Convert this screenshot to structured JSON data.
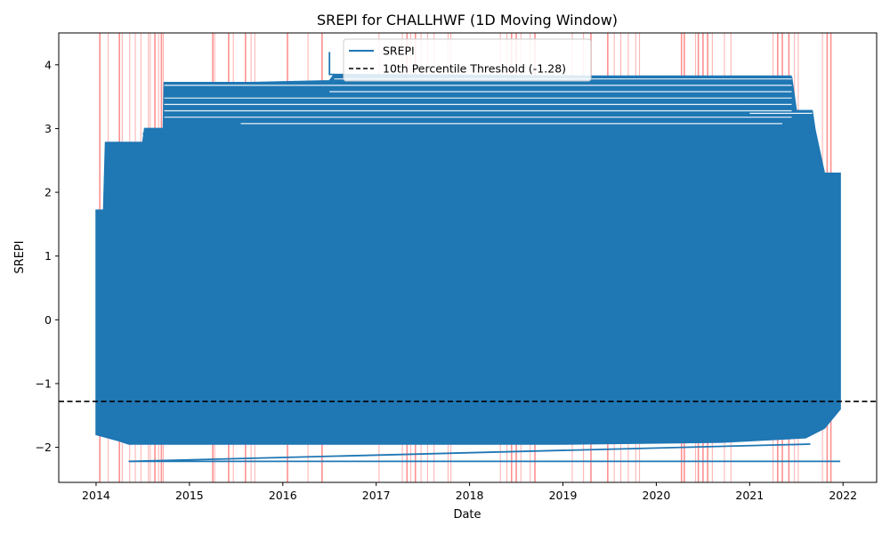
{
  "chart_data": {
    "type": "line",
    "title": "SREPI for CHALLHWF (1D Moving Window)",
    "xlabel": "Date",
    "ylabel": "SREPI",
    "x_range": [
      2013.6,
      2022.36
    ],
    "ylim": [
      -2.55,
      4.5
    ],
    "x_ticks": [
      {
        "value": 2014,
        "label": "2014"
      },
      {
        "value": 2015,
        "label": "2015"
      },
      {
        "value": 2016,
        "label": "2016"
      },
      {
        "value": 2017,
        "label": "2017"
      },
      {
        "value": 2018,
        "label": "2018"
      },
      {
        "value": 2019,
        "label": "2019"
      },
      {
        "value": 2020,
        "label": "2020"
      },
      {
        "value": 2021,
        "label": "2021"
      },
      {
        "value": 2022,
        "label": "2022"
      }
    ],
    "y_ticks": [
      {
        "value": -2,
        "label": "−2"
      },
      {
        "value": -1,
        "label": "−1"
      },
      {
        "value": 0,
        "label": "0"
      },
      {
        "value": 1,
        "label": "1"
      },
      {
        "value": 2,
        "label": "2"
      },
      {
        "value": 3,
        "label": "3"
      },
      {
        "value": 4,
        "label": "4"
      }
    ],
    "grid": false,
    "legend": {
      "placement": "top-center",
      "entries": [
        {
          "label": "SREPI",
          "style": "solid",
          "color": "#1f77b4"
        },
        {
          "label": "10th Percentile Threshold (-1.28)",
          "style": "dashed",
          "color": "#000000"
        }
      ]
    },
    "threshold": {
      "value": -1.28,
      "color": "#000000",
      "style": "dashed"
    },
    "srepi_band": {
      "color": "#1f77b4",
      "x_start": 2014.0,
      "x_end": 2021.97,
      "upper_envelope": [
        [
          2014.0,
          1.72
        ],
        [
          2014.08,
          1.72
        ],
        [
          2014.1,
          2.78
        ],
        [
          2014.5,
          2.78
        ],
        [
          2014.52,
          3.0
        ],
        [
          2014.72,
          3.0
        ],
        [
          2014.73,
          3.72
        ],
        [
          2015.6,
          3.72
        ],
        [
          2016.5,
          3.75
        ],
        [
          2016.55,
          3.85
        ],
        [
          2019.4,
          3.82
        ],
        [
          2020.7,
          3.8
        ],
        [
          2021.45,
          3.8
        ],
        [
          2021.5,
          3.28
        ],
        [
          2021.67,
          3.28
        ],
        [
          2021.7,
          2.98
        ],
        [
          2021.8,
          2.3
        ],
        [
          2021.97,
          2.3
        ]
      ],
      "lower_envelope": [
        [
          2014.0,
          -1.8
        ],
        [
          2014.25,
          -1.9
        ],
        [
          2014.35,
          -1.95
        ],
        [
          2019.0,
          -1.95
        ],
        [
          2020.7,
          -1.92
        ],
        [
          2021.6,
          -1.85
        ],
        [
          2021.8,
          -1.7
        ],
        [
          2021.97,
          -1.4
        ]
      ],
      "horizontal_levels": [
        {
          "x0": 2014.1,
          "x1": 2014.5,
          "y": 2.78
        },
        {
          "x0": 2014.1,
          "x1": 2014.5,
          "y": 2.62
        },
        {
          "x0": 2014.1,
          "x1": 2014.5,
          "y": 2.5
        },
        {
          "x0": 2014.1,
          "x1": 2014.45,
          "y": 2.38
        },
        {
          "x0": 2014.1,
          "x1": 2014.5,
          "y": 2.16
        },
        {
          "x0": 2014.1,
          "x1": 2014.35,
          "y": 1.9
        },
        {
          "x0": 2014.5,
          "x1": 2015.55,
          "y": 2.92
        },
        {
          "x0": 2014.73,
          "x1": 2021.45,
          "y": 3.72
        },
        {
          "x0": 2014.73,
          "x1": 2021.45,
          "y": 3.52
        },
        {
          "x0": 2014.73,
          "x1": 2021.45,
          "y": 3.42
        },
        {
          "x0": 2014.73,
          "x1": 2021.45,
          "y": 3.32
        },
        {
          "x0": 2014.73,
          "x1": 2021.45,
          "y": 3.22
        },
        {
          "x0": 2015.55,
          "x1": 2021.35,
          "y": 3.12
        },
        {
          "x0": 2016.5,
          "x1": 2021.45,
          "y": 3.62
        },
        {
          "x0": 2016.55,
          "x1": 2021.45,
          "y": 3.82
        },
        {
          "x0": 2021.0,
          "x1": 2021.67,
          "y": 3.28
        },
        {
          "x0": 2021.0,
          "x1": 2021.67,
          "y": 2.9
        },
        {
          "x0": 2021.0,
          "x1": 2021.67,
          "y": 2.75
        },
        {
          "x0": 2021.0,
          "x1": 2021.67,
          "y": 2.6
        },
        {
          "x0": 2014.35,
          "x1": 2021.97,
          "y": -2.22
        }
      ],
      "segments": [
        {
          "x": [
            2016.5,
            2016.5,
            2016.55
          ],
          "y": [
            4.2,
            3.85,
            3.85
          ]
        },
        {
          "x": [
            2014.35,
            2021.65
          ],
          "y": [
            -2.22,
            -1.95
          ]
        }
      ]
    },
    "highlight_color": "#ff6b6b",
    "highlight_dates": [
      2014.04,
      2014.13,
      2014.25,
      2014.28,
      2014.36,
      2014.42,
      2014.48,
      2014.56,
      2014.58,
      2014.63,
      2014.67,
      2014.7,
      2014.72,
      2015.25,
      2015.27,
      2015.42,
      2015.47,
      2015.6,
      2015.66,
      2015.7,
      2016.05,
      2016.27,
      2016.42,
      2017.03,
      2017.28,
      2017.33,
      2017.37,
      2017.42,
      2017.48,
      2017.55,
      2017.62,
      2017.77,
      2017.8,
      2018.33,
      2018.4,
      2018.45,
      2018.5,
      2018.55,
      2018.65,
      2018.7,
      2019.1,
      2019.22,
      2019.3,
      2019.48,
      2019.55,
      2019.62,
      2019.7,
      2019.78,
      2019.82,
      2020.27,
      2020.3,
      2020.42,
      2020.45,
      2020.5,
      2020.55,
      2020.6,
      2020.73,
      2020.8,
      2021.25,
      2021.3,
      2021.35,
      2021.42,
      2021.48,
      2021.52,
      2021.78,
      2021.83,
      2021.87
    ],
    "strong_highlights": [
      2014.04,
      2014.25,
      2014.63,
      2014.7,
      2015.25,
      2015.42,
      2015.6,
      2016.05,
      2016.42,
      2017.33,
      2017.42,
      2018.45,
      2018.5,
      2018.7,
      2019.3,
      2019.48,
      2020.27,
      2020.3,
      2020.45,
      2020.5,
      2020.55,
      2021.3,
      2021.35,
      2021.42,
      2021.83,
      2021.87
    ]
  }
}
